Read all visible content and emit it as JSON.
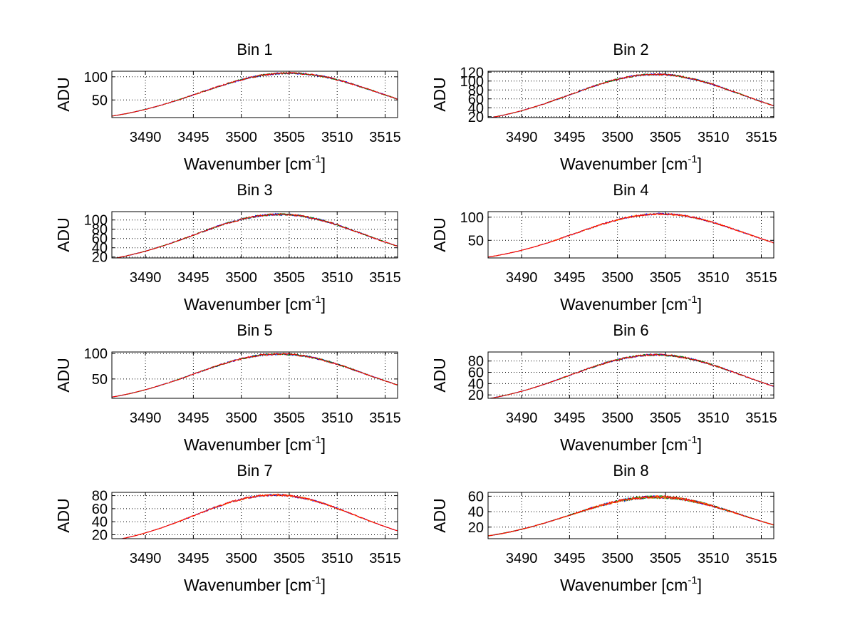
{
  "chart_data": [
    {
      "type": "line",
      "title": "Bin 1",
      "xlabel_main": "Wavenumber [cm",
      "xlabel_sup": "-1",
      "xlabel_end": "]",
      "ylabel": "ADU",
      "xlim": [
        3486.5,
        3516.3
      ],
      "ylim": [
        12,
        112
      ],
      "xticks": [
        3490,
        3495,
        3500,
        3505,
        3510,
        3515
      ],
      "yticks": [
        50,
        100
      ],
      "grid": true,
      "peak": {
        "center": 3505.0,
        "height": 108,
        "width": 22,
        "edge": 47,
        "left_start": 14
      },
      "series": [
        {
          "color": "#0000ff",
          "noise": 1.5
        },
        {
          "color": "#008000",
          "noise": 1.5
        },
        {
          "color": "#ff0000",
          "noise": 1.5
        }
      ]
    },
    {
      "type": "line",
      "title": "Bin 2",
      "xlabel_main": "Wavenumber [cm",
      "xlabel_sup": "-1",
      "xlabel_end": "]",
      "ylabel": "ADU",
      "xlim": [
        3486.5,
        3516.3
      ],
      "ylim": [
        18,
        122
      ],
      "xticks": [
        3490,
        3495,
        3500,
        3505,
        3510,
        3515
      ],
      "yticks": [
        20,
        40,
        60,
        80,
        100,
        120
      ],
      "grid": true,
      "peak": {
        "center": 3504.0,
        "height": 115,
        "width": 21,
        "edge": 50,
        "left_start": 20
      },
      "series": [
        {
          "color": "#0000ff",
          "noise": 1.6
        },
        {
          "color": "#008000",
          "noise": 1.6
        },
        {
          "color": "#ff0000",
          "noise": 1.6
        }
      ]
    },
    {
      "type": "line",
      "title": "Bin 3",
      "xlabel_main": "Wavenumber [cm",
      "xlabel_sup": "-1",
      "xlabel_end": "]",
      "ylabel": "ADU",
      "xlim": [
        3486.5,
        3516.3
      ],
      "ylim": [
        18,
        118
      ],
      "xticks": [
        3490,
        3495,
        3500,
        3505,
        3510,
        3515
      ],
      "yticks": [
        20,
        40,
        60,
        80,
        100
      ],
      "grid": true,
      "peak": {
        "center": 3504.0,
        "height": 112,
        "width": 21,
        "edge": 45,
        "left_start": 20
      },
      "series": [
        {
          "color": "#0000ff",
          "noise": 1.6
        },
        {
          "color": "#008000",
          "noise": 1.6
        },
        {
          "color": "#ff0000",
          "noise": 1.6
        }
      ]
    },
    {
      "type": "line",
      "title": "Bin 4",
      "xlabel_main": "Wavenumber [cm",
      "xlabel_sup": "-1",
      "xlabel_end": "]",
      "ylabel": "ADU",
      "xlim": [
        3486.5,
        3516.3
      ],
      "ylim": [
        12,
        112
      ],
      "xticks": [
        3490,
        3495,
        3500,
        3505,
        3510,
        3515
      ],
      "yticks": [
        50,
        100
      ],
      "grid": true,
      "peak": {
        "center": 3504.5,
        "height": 107,
        "width": 21,
        "edge": 47,
        "left_start": 14
      },
      "series": [
        {
          "color": "#0000ff",
          "noise": 1.5
        },
        {
          "color": "#ff8000",
          "noise": 1.5
        },
        {
          "color": "#ff0000",
          "noise": 1.5
        }
      ]
    },
    {
      "type": "line",
      "title": "Bin 5",
      "xlabel_main": "Wavenumber [cm",
      "xlabel_sup": "-1",
      "xlabel_end": "]",
      "ylabel": "ADU",
      "xlim": [
        3486.5,
        3516.3
      ],
      "ylim": [
        12,
        103
      ],
      "xticks": [
        3490,
        3495,
        3500,
        3505,
        3510,
        3515
      ],
      "yticks": [
        50,
        100
      ],
      "grid": true,
      "peak": {
        "center": 3504.0,
        "height": 99,
        "width": 21,
        "edge": 43,
        "left_start": 14
      },
      "series": [
        {
          "color": "#0000ff",
          "noise": 1.4
        },
        {
          "color": "#008000",
          "noise": 1.4
        },
        {
          "color": "#ff0000",
          "noise": 1.4
        }
      ]
    },
    {
      "type": "line",
      "title": "Bin 6",
      "xlabel_main": "Wavenumber [cm",
      "xlabel_sup": "-1",
      "xlabel_end": "]",
      "ylabel": "ADU",
      "xlim": [
        3486.5,
        3516.3
      ],
      "ylim": [
        14,
        96
      ],
      "xticks": [
        3490,
        3495,
        3500,
        3505,
        3510,
        3515
      ],
      "yticks": [
        20,
        40,
        60,
        80
      ],
      "grid": true,
      "peak": {
        "center": 3504.0,
        "height": 91,
        "width": 21,
        "edge": 40,
        "left_start": 16
      },
      "series": [
        {
          "color": "#0000ff",
          "noise": 1.3
        },
        {
          "color": "#008000",
          "noise": 1.3
        },
        {
          "color": "#ff0000",
          "noise": 1.3
        }
      ]
    },
    {
      "type": "line",
      "title": "Bin 7",
      "xlabel_main": "Wavenumber [cm",
      "xlabel_sup": "-1",
      "xlabel_end": "]",
      "ylabel": "ADU",
      "xlim": [
        3486.5,
        3516.3
      ],
      "ylim": [
        14,
        85
      ],
      "xticks": [
        3490,
        3495,
        3500,
        3505,
        3510,
        3515
      ],
      "yticks": [
        20,
        40,
        60,
        80
      ],
      "grid": true,
      "peak": {
        "center": 3503.5,
        "height": 81,
        "width": 20,
        "edge": 36,
        "left_start": 15
      },
      "series": [
        {
          "color": "#0000ff",
          "noise": 1.2
        },
        {
          "color": "#ff8000",
          "noise": 1.2
        },
        {
          "color": "#ff0000",
          "noise": 1.2
        }
      ]
    },
    {
      "type": "line",
      "title": "Bin 8",
      "xlabel_main": "Wavenumber [cm",
      "xlabel_sup": "-1",
      "xlabel_end": "]",
      "ylabel": "ADU",
      "xlim": [
        3486.5,
        3516.3
      ],
      "ylim": [
        5,
        65
      ],
      "xticks": [
        3490,
        3495,
        3500,
        3505,
        3510,
        3515
      ],
      "yticks": [
        20,
        40,
        60
      ],
      "grid": true,
      "peak": {
        "center": 3504.0,
        "height": 59,
        "width": 21,
        "edge": 25,
        "left_start": 7
      },
      "series": [
        {
          "color": "#00bfbf",
          "noise": 1.4
        },
        {
          "color": "#0000ff",
          "noise": 1.4
        },
        {
          "color": "#008000",
          "noise": 1.4
        },
        {
          "color": "#ff8000",
          "noise": 1.4
        },
        {
          "color": "#ff0000",
          "noise": 1.4
        }
      ]
    }
  ]
}
